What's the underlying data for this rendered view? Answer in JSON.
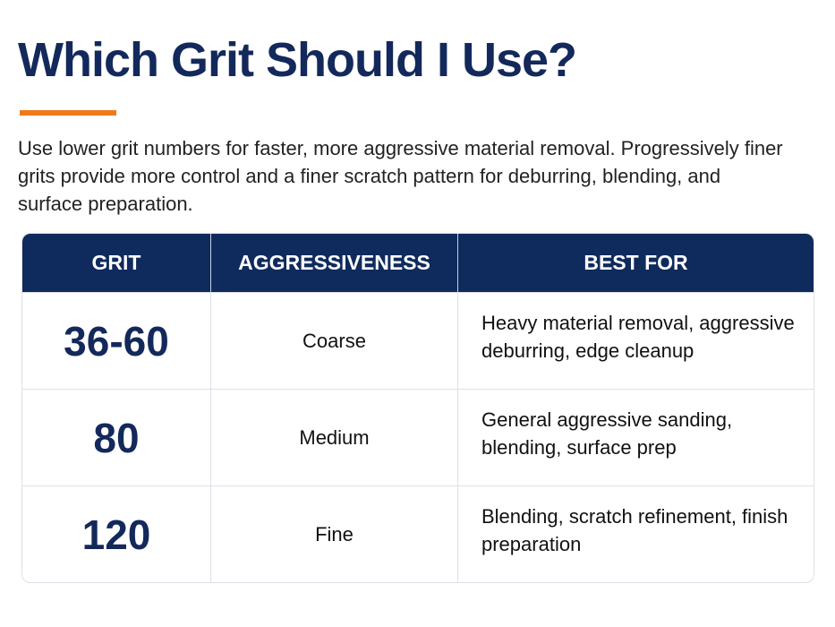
{
  "header": {
    "title": "Which Grit Should I Use?",
    "intro": "Use lower grit numbers for faster, more aggressive material removal. Progressively finer grits provide more control and a finer scratch pattern for deburring, blending, and surface preparation."
  },
  "table": {
    "columns": [
      "GRIT",
      "AGGRESSIVENESS",
      "BEST FOR"
    ],
    "rows": [
      [
        "36-60",
        "Coarse",
        "Heavy material removal, aggressive deburring, edge cleanup"
      ],
      [
        "80",
        "Medium",
        "General aggressive sanding, blending, surface prep"
      ],
      [
        "120",
        "Fine",
        "Blending, scratch refinement, finish preparation"
      ]
    ]
  }
}
